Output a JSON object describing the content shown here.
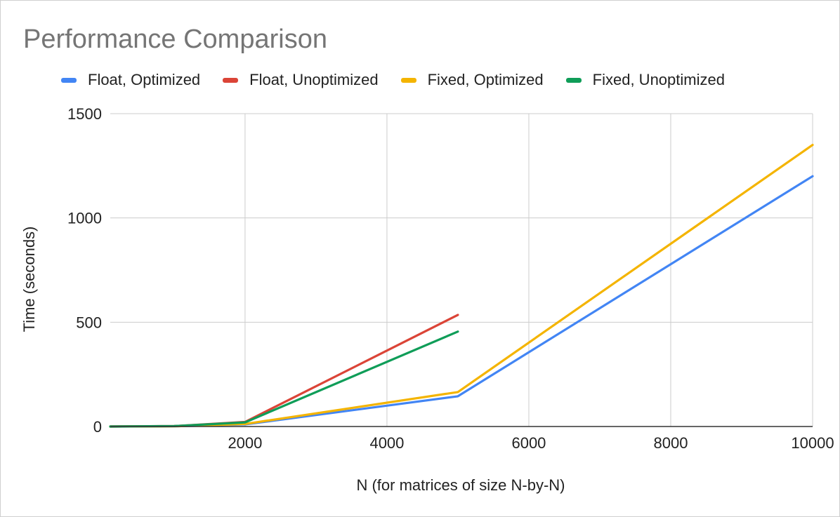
{
  "chart_data": {
    "type": "line",
    "title": "Performance Comparison",
    "xlabel": "N (for matrices of size N-by-N)",
    "ylabel": "Time (seconds)",
    "xlim": [
      100,
      10000
    ],
    "ylim": [
      0,
      1500
    ],
    "xticks": [
      2000,
      4000,
      6000,
      8000,
      10000
    ],
    "yticks": [
      0,
      500,
      1000,
      1500
    ],
    "grid": true,
    "legend_position": "top",
    "series": [
      {
        "name": "Float, Optimized",
        "color": "#4285f4",
        "x": [
          100,
          1000,
          2000,
          5000,
          10000
        ],
        "y": [
          0,
          1,
          10,
          145,
          1200
        ]
      },
      {
        "name": "Float, Unoptimized",
        "color": "#db4437",
        "x": [
          100,
          1000,
          2000,
          5000
        ],
        "y": [
          0,
          2,
          22,
          535
        ]
      },
      {
        "name": "Fixed, Optimized",
        "color": "#f4b400",
        "x": [
          100,
          1000,
          2000,
          5000,
          10000
        ],
        "y": [
          0,
          1,
          12,
          165,
          1350
        ]
      },
      {
        "name": "Fixed, Unoptimized",
        "color": "#0f9d58",
        "x": [
          100,
          1000,
          2000,
          5000
        ],
        "y": [
          0,
          2,
          20,
          455
        ]
      }
    ]
  }
}
